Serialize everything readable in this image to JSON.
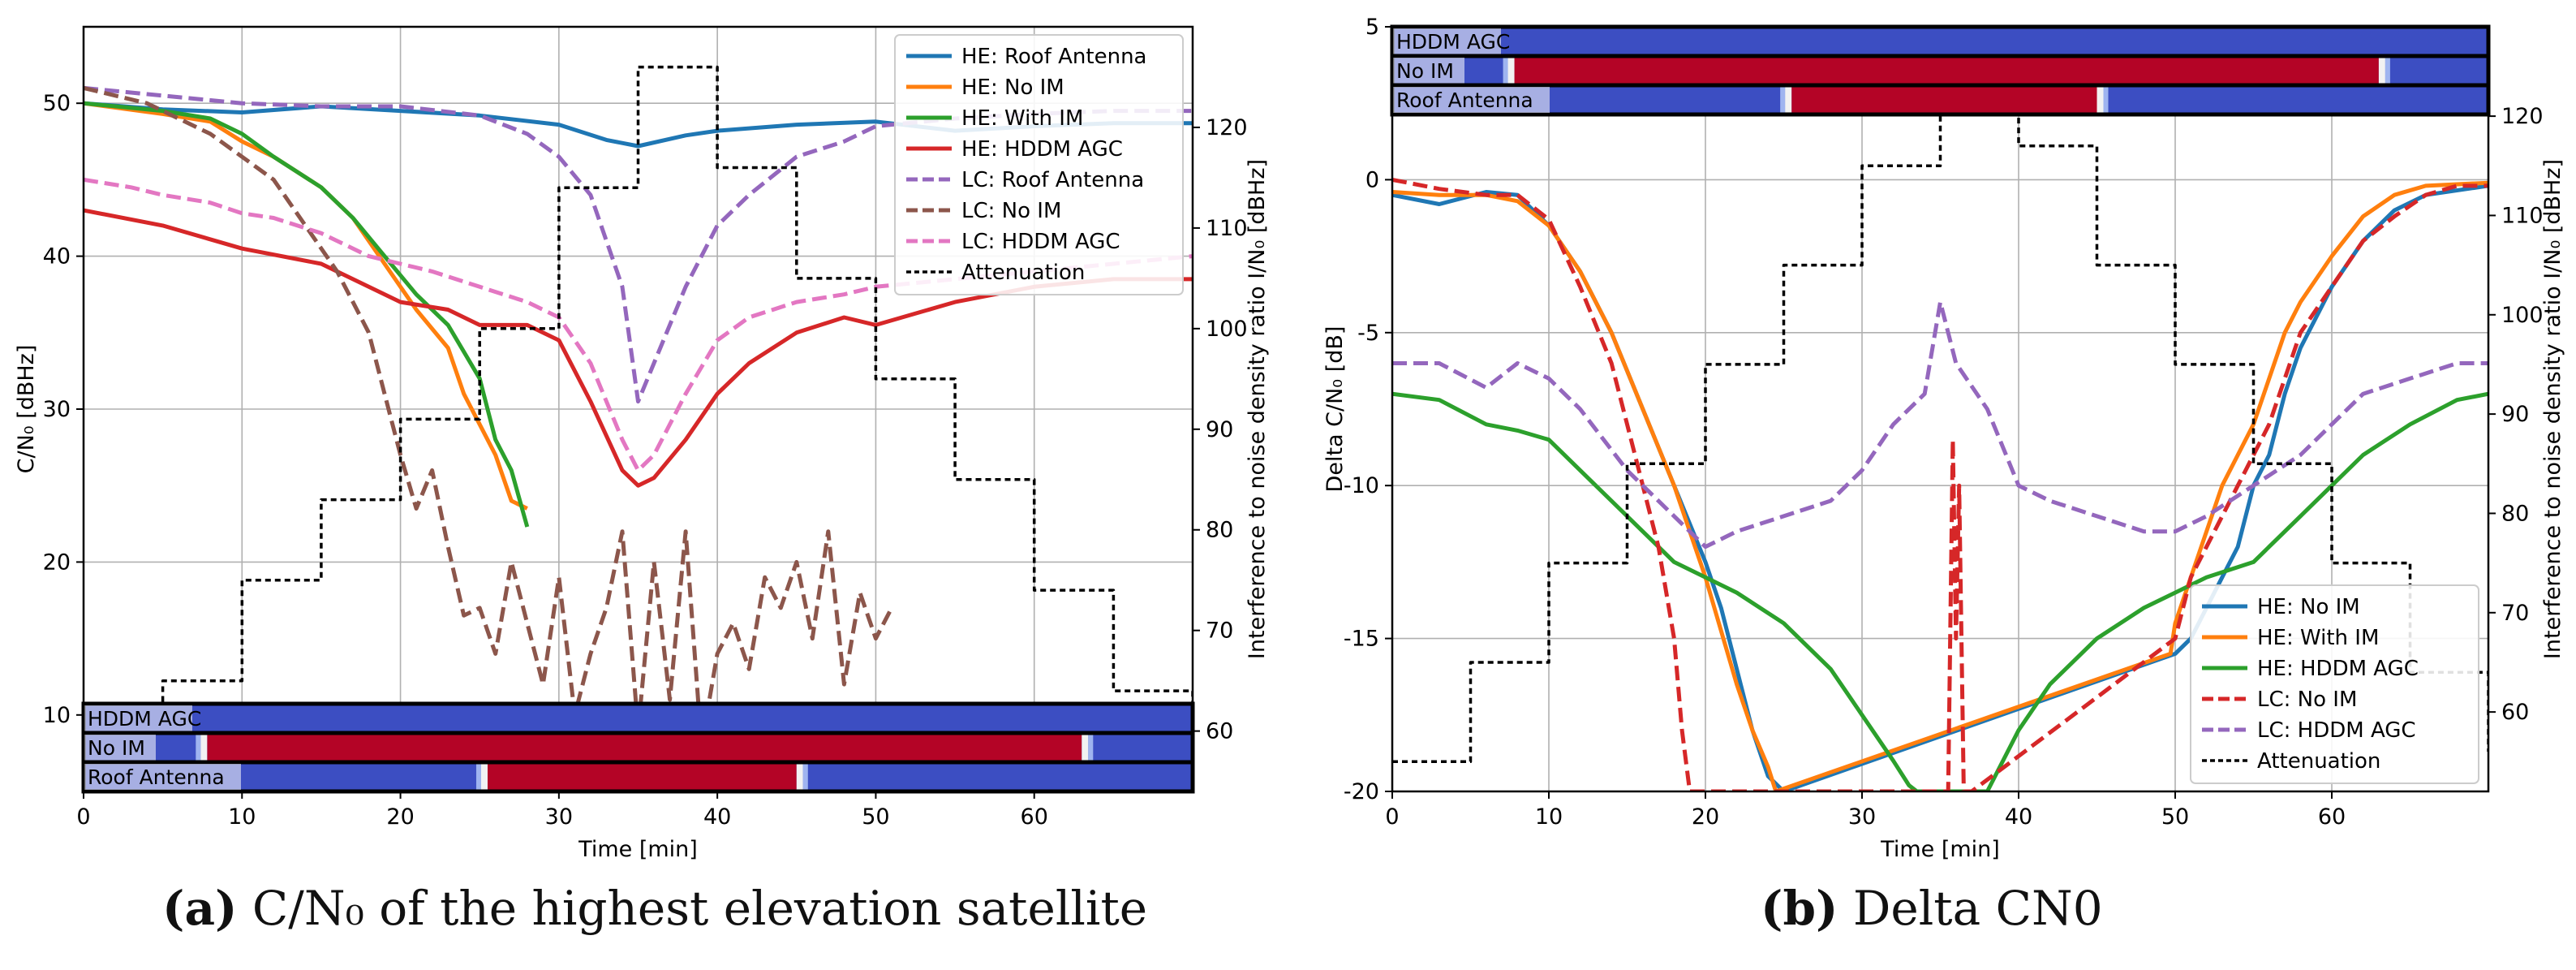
{
  "captions": {
    "a_letter": "(a)",
    "a_text": "C/N₀ of the highest elevation satellite",
    "b_letter": "(b)",
    "b_text": "Delta CN0"
  },
  "colors": {
    "blue": "#1f77b4",
    "orange": "#ff7f0e",
    "green": "#2ca02c",
    "red": "#d62728",
    "purple": "#9467bd",
    "brown": "#8c564b",
    "pink": "#e377c2",
    "black": "#000000",
    "heat_low": "#3c4ec2",
    "heat_high": "#b40426"
  },
  "chart_data": [
    {
      "type": "line",
      "xlabel": "Time [min]",
      "ylabel": "C/N₀ [dBHz]",
      "y2label": "Interference to noise density ratio I/N₀ [dBHz]",
      "xlim": [
        0,
        70
      ],
      "ylim": [
        5,
        55
      ],
      "y2lim": [
        54,
        130
      ],
      "xticks": [
        0,
        10,
        20,
        30,
        40,
        50,
        60
      ],
      "yticks": [
        10,
        20,
        30,
        40,
        50
      ],
      "y2ticks": [
        60,
        70,
        80,
        90,
        100,
        110,
        120
      ],
      "grid": true,
      "legend_position": "top-right",
      "series": [
        {
          "name": "HE: Roof Antenna",
          "color": "blue",
          "dash": "solid",
          "x": [
            0,
            5,
            10,
            15,
            20,
            25,
            30,
            33,
            35,
            38,
            40,
            45,
            50,
            55,
            60,
            65,
            70
          ],
          "y": [
            50,
            49.6,
            49.4,
            49.8,
            49.5,
            49.2,
            48.6,
            47.6,
            47.2,
            47.9,
            48.2,
            48.6,
            48.8,
            48.2,
            48.5,
            48.7,
            48.7
          ]
        },
        {
          "name": "HE: No IM",
          "color": "orange",
          "dash": "solid",
          "x": [
            0,
            5,
            8,
            10,
            12,
            15,
            17,
            19,
            21,
            23,
            24,
            25,
            26,
            27,
            28
          ],
          "y": [
            50,
            49.3,
            48.8,
            47.5,
            46.5,
            44.5,
            42.5,
            39.5,
            36.5,
            34,
            31,
            29,
            27,
            24,
            23.5
          ]
        },
        {
          "name": "HE: With IM",
          "color": "green",
          "dash": "solid",
          "x": [
            0,
            5,
            8,
            10,
            12,
            15,
            17,
            19,
            21,
            23,
            25,
            26,
            27,
            28
          ],
          "y": [
            50,
            49.5,
            49,
            48,
            46.5,
            44.5,
            42.5,
            40,
            37.5,
            35.5,
            32,
            28,
            26,
            22.3
          ]
        },
        {
          "name": "HE: HDDM AGC",
          "color": "red",
          "dash": "solid",
          "x": [
            0,
            5,
            10,
            15,
            18,
            20,
            23,
            25,
            28,
            30,
            32,
            34,
            35,
            36,
            38,
            40,
            42,
            45,
            48,
            50,
            55,
            60,
            65,
            70
          ],
          "y": [
            43,
            42,
            40.5,
            39.5,
            38,
            37,
            36.5,
            35.5,
            35.5,
            34.5,
            30.5,
            26,
            25,
            25.5,
            28,
            31,
            33,
            35,
            36,
            35.5,
            37,
            38,
            38.5,
            38.5
          ]
        },
        {
          "name": "LC: Roof Antenna",
          "color": "purple",
          "dash": "dash",
          "x": [
            0,
            5,
            10,
            15,
            20,
            25,
            28,
            30,
            32,
            34,
            35,
            36,
            38,
            40,
            42,
            45,
            48,
            50,
            55,
            60,
            65,
            70
          ],
          "y": [
            51,
            50.5,
            50,
            49.8,
            49.8,
            49.2,
            48,
            46.5,
            44,
            38,
            30.5,
            33,
            38,
            42,
            44,
            46.5,
            47.5,
            48.5,
            49,
            49.3,
            49.5,
            49.5
          ]
        },
        {
          "name": "LC: No IM",
          "color": "brown",
          "dash": "dash",
          "x": [
            0,
            4,
            8,
            10,
            12,
            14,
            16,
            18,
            19,
            20,
            21,
            22,
            23,
            24,
            25,
            26,
            27,
            28,
            29,
            30,
            31,
            32,
            33,
            34,
            35,
            36,
            37,
            38,
            39,
            40,
            41,
            42,
            43,
            44,
            45,
            46,
            47,
            48,
            49,
            50,
            51
          ],
          "y": [
            51,
            50,
            48,
            46.5,
            45,
            42,
            39,
            35,
            31,
            27,
            23.5,
            26,
            21,
            16.5,
            17,
            14,
            20,
            16,
            12,
            19,
            10,
            14,
            17,
            22,
            9,
            20,
            11,
            22,
            8,
            14,
            16,
            13,
            19,
            17,
            20,
            15,
            22,
            12,
            18,
            15,
            17
          ]
        },
        {
          "name": "LC: HDDM AGC",
          "color": "pink",
          "dash": "dash",
          "x": [
            0,
            3,
            5,
            8,
            10,
            12,
            15,
            18,
            20,
            22,
            25,
            28,
            30,
            32,
            34,
            35,
            36,
            38,
            40,
            42,
            45,
            48,
            50,
            55,
            60,
            65,
            70
          ],
          "y": [
            45,
            44.5,
            44,
            43.5,
            42.8,
            42.5,
            41.5,
            40,
            39.5,
            39,
            38,
            37,
            36,
            33,
            28,
            26,
            27,
            31,
            34.5,
            36,
            37,
            37.5,
            38,
            38.5,
            39,
            39.5,
            40
          ]
        },
        {
          "name": "Attenuation",
          "color": "black",
          "dash": "dot",
          "axis": "y2",
          "x": [
            0,
            5,
            10,
            15,
            20,
            25,
            30,
            35,
            40,
            45,
            50,
            55,
            60,
            65,
            70
          ],
          "y": [
            55.3,
            65,
            75,
            83,
            91,
            100,
            114,
            126,
            116,
            105,
            95,
            85,
            74,
            64,
            54.6
          ]
        }
      ],
      "heatmap_strips": [
        {
          "label": "HDDM AGC",
          "high_ranges": []
        },
        {
          "label": "No IM",
          "high_ranges": [
            [
              7.8,
              63
            ]
          ]
        },
        {
          "label": "Roof Antenna",
          "high_ranges": [
            [
              25.5,
              45
            ]
          ]
        }
      ]
    },
    {
      "type": "line",
      "xlabel": "Time [min]",
      "ylabel": "Delta C/N₀ [dB]",
      "y2label": "Interference to noise density ratio I/N₀ [dBHz]",
      "xlim": [
        0,
        70
      ],
      "ylim": [
        -20,
        5
      ],
      "y2lim": [
        52,
        129
      ],
      "xticks": [
        0,
        10,
        20,
        30,
        40,
        50,
        60
      ],
      "yticks": [
        -20,
        -15,
        -10,
        -5,
        0,
        5
      ],
      "y2ticks": [
        60,
        70,
        80,
        90,
        100,
        110,
        120
      ],
      "grid": true,
      "legend_position": "bottom-right",
      "series": [
        {
          "name": "HE: No IM",
          "color": "blue",
          "dash": "solid",
          "x": [
            0,
            3,
            6,
            8,
            10,
            12,
            14,
            16,
            18,
            20,
            21,
            22,
            23,
            24,
            25,
            50,
            51,
            52,
            53,
            54,
            55,
            56,
            57,
            58,
            60,
            62,
            64,
            66,
            70
          ],
          "y": [
            -0.5,
            -0.8,
            -0.4,
            -0.5,
            -1.5,
            -3,
            -5,
            -7.5,
            -10,
            -12.5,
            -14,
            -16,
            -18,
            -19.5,
            -20,
            -15.5,
            -15,
            -14,
            -13,
            -12,
            -10,
            -9,
            -7,
            -5.5,
            -3.5,
            -2,
            -1,
            -0.5,
            -0.2
          ]
        },
        {
          "name": "HE: With IM",
          "color": "orange",
          "dash": "solid",
          "x": [
            0,
            3,
            6,
            8,
            10,
            12,
            14,
            16,
            18,
            20,
            22,
            23,
            24,
            24.5,
            49.7,
            50,
            51,
            52,
            53,
            54,
            55,
            56,
            57,
            58,
            60,
            62,
            64,
            66,
            70
          ],
          "y": [
            -0.4,
            -0.5,
            -0.5,
            -0.7,
            -1.5,
            -3,
            -5,
            -7.5,
            -10,
            -13,
            -16.5,
            -18,
            -19.2,
            -20,
            -15.5,
            -14.5,
            -13,
            -11.5,
            -10,
            -9,
            -8,
            -6.5,
            -5,
            -4,
            -2.5,
            -1.2,
            -0.5,
            -0.2,
            -0.1
          ]
        },
        {
          "name": "HE: HDDM AGC",
          "color": "green",
          "dash": "solid",
          "x": [
            0,
            3,
            6,
            8,
            10,
            12,
            15,
            18,
            20,
            22,
            25,
            28,
            30,
            32,
            33,
            33.5,
            38,
            40,
            42,
            45,
            48,
            50,
            52,
            55,
            58,
            60,
            62,
            65,
            68,
            70
          ],
          "y": [
            -7,
            -7.2,
            -8,
            -8.2,
            -8.5,
            -9.5,
            -11,
            -12.5,
            -13,
            -13.5,
            -14.5,
            -16,
            -17.5,
            -19,
            -19.8,
            -20,
            -20,
            -18,
            -16.5,
            -15,
            -14,
            -13.5,
            -13,
            -12.5,
            -11,
            -10,
            -9,
            -8,
            -7.2,
            -7
          ]
        },
        {
          "name": "LC: No IM",
          "color": "red",
          "dash": "dash",
          "x": [
            0,
            3,
            6,
            8,
            10,
            12,
            14,
            15,
            16,
            17,
            18,
            18.5,
            19,
            35.5,
            35.8,
            36,
            36.2,
            36.5,
            37,
            50,
            51,
            52,
            53,
            54,
            55,
            56,
            57,
            58,
            60,
            62,
            64,
            66,
            68,
            70
          ],
          "y": [
            0,
            -0.3,
            -0.5,
            -0.5,
            -1.3,
            -3.5,
            -6,
            -8,
            -10,
            -12,
            -15,
            -18,
            -20,
            -20,
            -8.5,
            -15,
            -10,
            -20,
            -20,
            -15,
            -13,
            -12,
            -11,
            -10,
            -9,
            -8,
            -6.5,
            -5,
            -3.5,
            -2,
            -1.2,
            -0.5,
            -0.2,
            -0.2
          ]
        },
        {
          "name": "LC: HDDM AGC",
          "color": "purple",
          "dash": "dash",
          "x": [
            0,
            3,
            6,
            8,
            10,
            12,
            15,
            18,
            20,
            22,
            25,
            28,
            30,
            32,
            34,
            35,
            36,
            38,
            40,
            42,
            45,
            48,
            50,
            52,
            55,
            58,
            60,
            62,
            65,
            68,
            70
          ],
          "y": [
            -6,
            -6,
            -6.8,
            -6,
            -6.5,
            -7.5,
            -9.5,
            -11,
            -12,
            -11.5,
            -11,
            -10.5,
            -9.5,
            -8,
            -7,
            -4,
            -6,
            -7.5,
            -10,
            -10.5,
            -11,
            -11.5,
            -11.5,
            -11,
            -10,
            -9,
            -8,
            -7,
            -6.5,
            -6,
            -6
          ]
        },
        {
          "name": "Attenuation",
          "color": "black",
          "dash": "dot",
          "axis": "y2",
          "x": [
            0,
            5,
            10,
            15,
            20,
            25,
            30,
            35,
            40,
            45,
            50,
            55,
            60,
            65,
            70
          ],
          "y": [
            55,
            65,
            75,
            85,
            95,
            105,
            115,
            126,
            117,
            105,
            95,
            85,
            75,
            64,
            56
          ]
        }
      ],
      "heatmap_strips": [
        {
          "label": "HDDM AGC",
          "high_ranges": []
        },
        {
          "label": "No IM",
          "high_ranges": [
            [
              7.8,
              63
            ]
          ]
        },
        {
          "label": "Roof Antenna",
          "high_ranges": [
            [
              25.5,
              45
            ]
          ]
        }
      ]
    }
  ]
}
